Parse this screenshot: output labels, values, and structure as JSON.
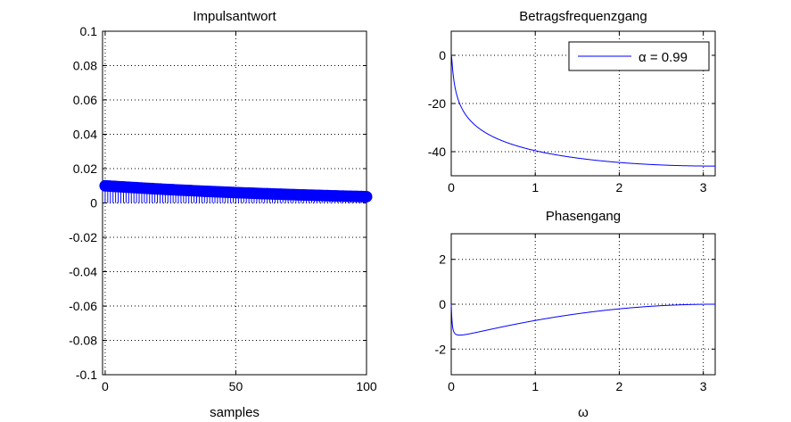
{
  "chart_data": [
    {
      "id": "impulse",
      "type": "scatter",
      "style": "stem",
      "title": "Impulsantwort",
      "xlabel": "samples",
      "ylabel": "",
      "xlim": [
        -1,
        100
      ],
      "ylim": [
        -0.1,
        0.1
      ],
      "xticks": [
        0,
        50,
        100
      ],
      "xtick_labels": [
        "0",
        "50",
        "100"
      ],
      "yticks": [
        -0.1,
        -0.08,
        -0.06,
        -0.04,
        -0.02,
        0,
        0.02,
        0.04,
        0.06,
        0.08,
        0.1
      ],
      "ytick_labels": [
        "-0.1",
        "-0.08",
        "-0.06",
        "-0.04",
        "-0.02",
        "0",
        "0.02",
        "0.04",
        "0.06",
        "0.08",
        "0.1"
      ],
      "grid": true,
      "color": "#0000ff",
      "series": [
        {
          "alpha": 0.99,
          "gain": 0.01,
          "n_start": 0,
          "n_end": 100
        }
      ]
    },
    {
      "id": "magnitude",
      "type": "line",
      "title": "Betragsfrequenzgang",
      "xlabel": "",
      "ylabel": "",
      "xlim": [
        0,
        3.1416
      ],
      "ylim": [
        -50,
        10
      ],
      "xticks": [
        0,
        1,
        2,
        3
      ],
      "xtick_labels": [
        "0",
        "1",
        "2",
        "3"
      ],
      "yticks": [
        -40,
        -20,
        0
      ],
      "ytick_labels": [
        "-40",
        "-20",
        "0"
      ],
      "grid": true,
      "legend": {
        "position": "top-right",
        "entries": [
          "α = 0.99"
        ]
      },
      "color": "#0000ff",
      "series": [
        {
          "name": "α = 0.99",
          "alpha": 0.99,
          "quantity": "magnitude_db"
        }
      ]
    },
    {
      "id": "phase",
      "type": "line",
      "title": "Phasengang",
      "xlabel": "ω",
      "ylabel": "",
      "xlim": [
        0,
        3.1416
      ],
      "ylim": [
        -3.1416,
        3.1416
      ],
      "xticks": [
        0,
        1,
        2,
        3
      ],
      "xtick_labels": [
        "0",
        "1",
        "2",
        "3"
      ],
      "yticks": [
        -2,
        0,
        2
      ],
      "ytick_labels": [
        "-2",
        "0",
        "2"
      ],
      "grid": true,
      "color": "#0000ff",
      "series": [
        {
          "alpha": 0.99,
          "quantity": "phase_rad"
        }
      ]
    }
  ]
}
